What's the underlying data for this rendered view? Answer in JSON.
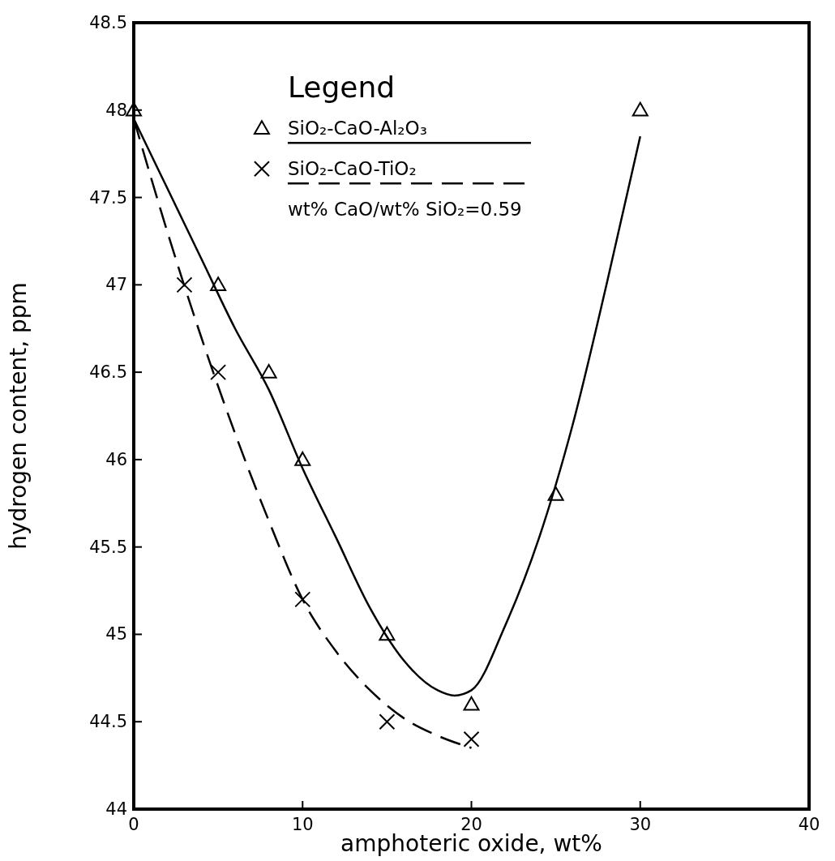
{
  "chart_data": {
    "type": "scatter",
    "xlabel": "amphoteric oxide, wt%",
    "ylabel": "hydrogen content, ppm",
    "xlim": [
      0,
      40
    ],
    "xticks": [
      0,
      10,
      20,
      30,
      40
    ],
    "ylim": [
      44,
      48.5
    ],
    "yticks": [
      44,
      44.5,
      45,
      45.5,
      46,
      46.5,
      47,
      47.5,
      48,
      48.5
    ],
    "grid": false,
    "legend": "top",
    "legend_title": "Legend",
    "annotations": [
      "wt% CaO/wt% SiO₂=0.59"
    ],
    "series": [
      {
        "name": "SiO₂-CaO-Al₂O₃",
        "marker": "triangle",
        "color": "#000000",
        "x": [
          0,
          5,
          8,
          10,
          15,
          20,
          25,
          30
        ],
        "values": [
          48,
          47,
          46.5,
          46,
          45,
          44.6,
          45.8,
          48
        ]
      },
      {
        "type": "line",
        "line_style": "solid",
        "marker": "none",
        "color": "#000000",
        "x": [
          0,
          2,
          4,
          6,
          8,
          10,
          12,
          14,
          16,
          18,
          19,
          20,
          22,
          24,
          26,
          28,
          30
        ],
        "values": [
          47.95,
          47.55,
          47.15,
          46.75,
          46.4,
          45.95,
          45.55,
          45.15,
          44.85,
          44.68,
          44.65,
          44.68,
          45.05,
          45.55,
          46.2,
          47.0,
          47.85
        ]
      },
      {
        "name": "SiO₂-CaO-TiO₂",
        "marker": "cross",
        "color": "#000000",
        "x": [
          3,
          5,
          10,
          15,
          20
        ],
        "values": [
          47,
          46.5,
          45.2,
          44.5,
          44.4
        ]
      },
      {
        "type": "line",
        "line_style": "dashed",
        "marker": "none",
        "color": "#000000",
        "x": [
          0,
          2,
          4,
          6,
          8,
          10,
          12,
          14,
          16,
          18,
          20
        ],
        "values": [
          47.95,
          47.3,
          46.7,
          46.15,
          45.65,
          45.2,
          44.9,
          44.68,
          44.52,
          44.42,
          44.35
        ]
      }
    ]
  }
}
